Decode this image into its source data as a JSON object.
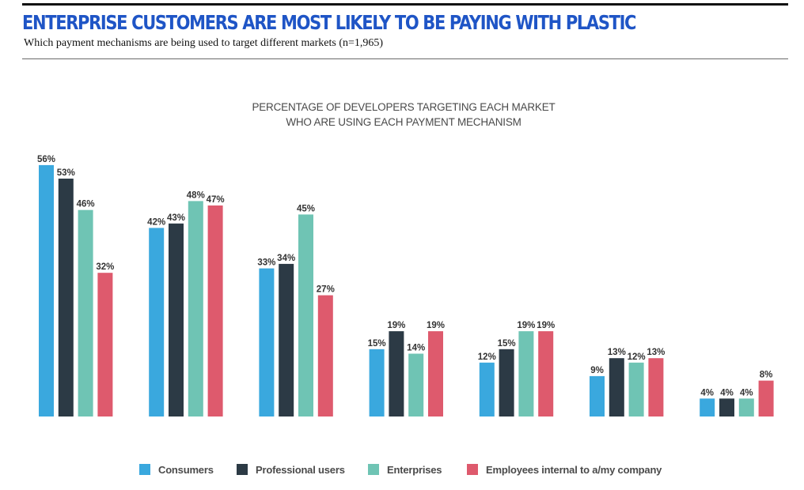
{
  "header": {
    "title": "ENTERPRISE CUSTOMERS ARE MOST LIKELY TO BE PAYING WITH PLASTIC",
    "subtitle": "Which payment mechanisms are being used to target different markets (n=1,965)"
  },
  "chart_data": {
    "type": "bar",
    "title_lines": [
      "PERCENTAGE OF DEVELOPERS TARGETING EACH MARKET",
      "WHO ARE USING EACH PAYMENT MECHANISM"
    ],
    "categories": [
      "",
      "",
      "",
      "",
      "",
      "",
      ""
    ],
    "ylim": [
      0,
      60
    ],
    "grid": false,
    "legend_position": "bottom",
    "value_suffix": "%",
    "series": [
      {
        "name": "Consumers",
        "color": "#3aa8de",
        "values": [
          56,
          42,
          33,
          15,
          12,
          9,
          4
        ]
      },
      {
        "name": "Professional users",
        "color": "#2c3a45",
        "values": [
          53,
          43,
          34,
          19,
          15,
          13,
          4
        ]
      },
      {
        "name": "Enterprises",
        "color": "#6fc4b4",
        "values": [
          46,
          48,
          45,
          14,
          19,
          12,
          4
        ]
      },
      {
        "name": "Employees internal to a/my company",
        "color": "#de5a6d",
        "values": [
          32,
          47,
          27,
          19,
          19,
          13,
          8
        ]
      }
    ]
  }
}
